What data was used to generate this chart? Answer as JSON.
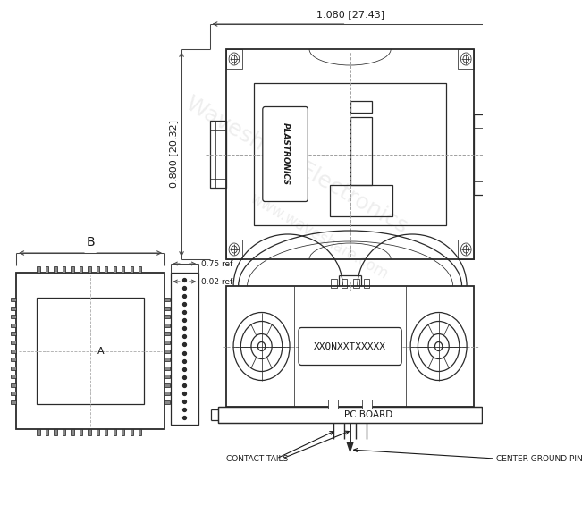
{
  "bg_color": "#ffffff",
  "line_color": "#2a2a2a",
  "dim_color": "#444444",
  "text_color": "#1a1a1a",
  "watermark_color": "#d0d0d0",
  "dim_width": "1.080 [27.43]",
  "dim_height": "0.800 [20.32]",
  "dim_ref1": "0.75 ref",
  "dim_ref2": "0.02 ref",
  "label_B": "B",
  "label_A": "A",
  "label_pcboard": "PC BOARD",
  "label_contact": "CONTACT TAILS",
  "label_ground": "CENTER GROUND PIN",
  "label_model": "XXQNXXTXXXXX",
  "label_plastronics": "PLASTRONICS"
}
